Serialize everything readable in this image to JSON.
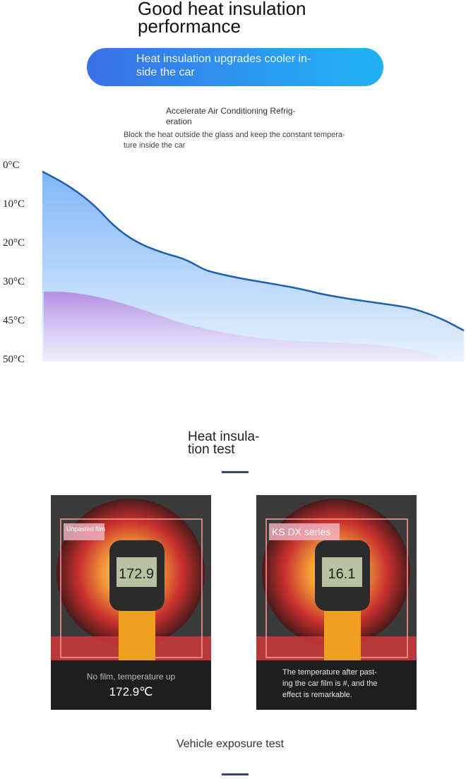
{
  "header": {
    "title_lines": [
      "Good heat insulation",
      "performance"
    ]
  },
  "banner": {
    "lines": [
      "Heat insulation upgrades cooler in-",
      "side the car"
    ]
  },
  "feature": {
    "title_lines": [
      "Accelerate Air Conditioning Refrig-",
      "eration"
    ],
    "text_lines": [
      "Block the heat outside the glass and keep the constant tempera-",
      "ture inside the car"
    ]
  },
  "temperature_axis": {
    "labels": [
      "0°C",
      "10°C",
      "20°C",
      "30°C",
      "45°C",
      "50°C"
    ]
  },
  "test_section": {
    "title_lines": [
      "Heat insula-",
      "tion test"
    ]
  },
  "panels": [
    {
      "tag": "Unpasted film",
      "reading": "172.9",
      "caption_lines": [
        "No film, temperature up"
      ],
      "temperature": "172.9℃"
    },
    {
      "tag": "KS DX series",
      "reading": "16.1",
      "caption_lines": [
        "The temperature after past-",
        "ing the car film is #, and the",
        "effect is remarkable."
      ]
    }
  ],
  "exposure_section": {
    "title": "Vehicle exposure test"
  }
}
